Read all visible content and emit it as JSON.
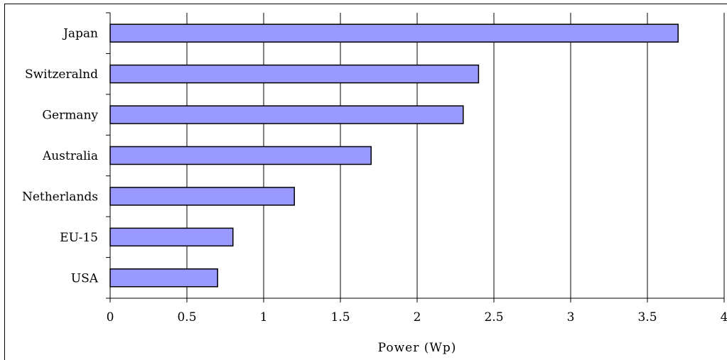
{
  "chart_data": {
    "type": "bar",
    "orientation": "horizontal",
    "categories": [
      "Japan",
      "Switzeralnd",
      "Germany",
      "Australia",
      "Netherlands",
      "EU-15",
      "USA"
    ],
    "values": [
      3.7,
      2.4,
      2.3,
      1.7,
      1.2,
      0.8,
      0.7
    ],
    "xlabel": "Power (Wp)",
    "ylabel": "",
    "xlim": [
      0,
      4
    ],
    "xticks": [
      0,
      0.5,
      1,
      1.5,
      2,
      2.5,
      3,
      3.5,
      4
    ],
    "xtick_labels": [
      "0",
      "0.5",
      "1",
      "1.5",
      "2",
      "2.5",
      "3",
      "3.5",
      "4"
    ],
    "grid": "vertical",
    "legend": "none",
    "bar_color": "#9999ff",
    "bar_edge_color": "#000000"
  }
}
